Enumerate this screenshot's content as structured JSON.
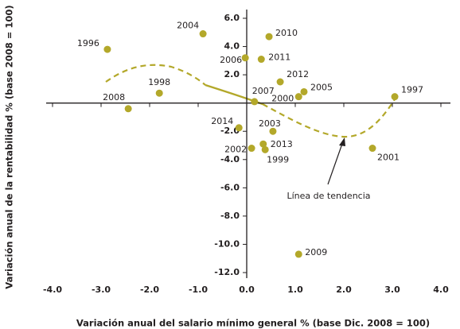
{
  "chart_data": {
    "type": "scatter",
    "x_label": "Variación anual del salario mínimo general % (base Dic. 2008 = 100)",
    "y_label": "Variación anual de la rentabilidad % (base 2008 = 100)",
    "annotation": "Línea de tendencia",
    "series": [
      {
        "color": "#b3a82a",
        "labels": [
          "1996",
          "2008",
          "1998",
          "2004",
          "2006",
          "2010",
          "2011",
          "2012",
          "2007",
          "2000",
          "2005",
          "1997",
          "2014",
          "2003",
          "2013",
          "1999",
          "2002",
          "2001",
          "2009"
        ],
        "x": [
          -2.87,
          -2.44,
          -1.8,
          -0.9,
          -0.03,
          0.46,
          0.3,
          0.69,
          0.16,
          1.07,
          1.18,
          3.05,
          -0.16,
          0.54,
          0.34,
          0.38,
          0.1,
          2.59,
          1.07
        ],
        "values": [
          3.8,
          -0.4,
          0.7,
          4.9,
          3.2,
          4.7,
          3.1,
          1.5,
          0.1,
          0.45,
          0.8,
          0.45,
          -1.75,
          -2.0,
          -2.9,
          -3.3,
          -3.2,
          -3.2,
          -10.7
        ]
      }
    ],
    "xlim": [
      -4,
      4
    ],
    "xticks": [
      {
        "value": -4,
        "label": "-4.0"
      },
      {
        "value": -3,
        "label": "-3.0"
      },
      {
        "value": -2,
        "label": "-2.0"
      },
      {
        "value": -1,
        "label": "-1.0"
      },
      {
        "value": 0,
        "label": "0.0"
      },
      {
        "value": 1,
        "label": "1.0"
      },
      {
        "value": 2,
        "label": "2.0"
      },
      {
        "value": 3,
        "label": "3.0"
      },
      {
        "value": 4,
        "label": "4.0"
      }
    ],
    "ylim": [
      -12,
      6
    ],
    "yticks": [
      {
        "value": -12,
        "label": "-12.0"
      },
      {
        "value": -10,
        "label": "-10.0"
      },
      {
        "value": -8,
        "label": "-8.0"
      },
      {
        "value": -6,
        "label": "-6.0"
      },
      {
        "value": -4,
        "label": "-4.0"
      },
      {
        "value": -2,
        "label": "-2.0"
      },
      {
        "value": 2,
        "label": "2.0"
      },
      {
        "value": 4,
        "label": "4.0"
      },
      {
        "value": 6,
        "label": "6.0"
      }
    ],
    "grid": false
  }
}
